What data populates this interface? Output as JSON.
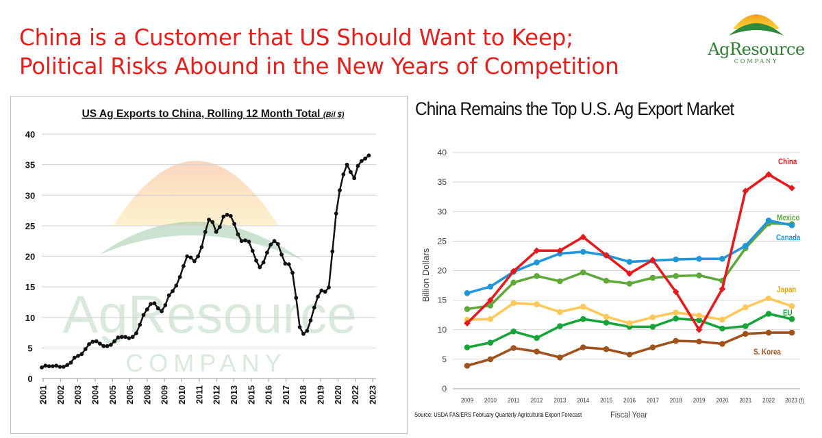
{
  "slide": {
    "title_line1": "China is a Customer that US Should Want to Keep;",
    "title_line2": "Political Risks Abound in the New Years of Competition"
  },
  "logo": {
    "name": "AgResource",
    "sub": "COMPANY"
  },
  "watermark": {
    "name": "AgResource",
    "sub": "COMPANY"
  },
  "colors": {
    "title_red": "#e0211d",
    "brand_green": "#2e7d32"
  },
  "chart_data": [
    {
      "type": "line",
      "title": "US Ag Exports to China, Rolling 12 Month Total",
      "title_unit": "(Bil $)",
      "ylim": [
        0,
        40
      ],
      "yticks": [
        0,
        5,
        10,
        15,
        20,
        25,
        30,
        35,
        40
      ],
      "xlim": [
        2001,
        2024
      ],
      "x_tick_labels": [
        "2001",
        "2002",
        "2003",
        "2004",
        "2005",
        "2006",
        "2008",
        "2009",
        "2010",
        "2011",
        "2012",
        "2013",
        "2015",
        "2016",
        "2017",
        "2018",
        "2019",
        "2020",
        "2022",
        "2023"
      ],
      "grid": true,
      "series": [
        {
          "color": "#111111",
          "points": [
            [
              2001.0,
              1.8
            ],
            [
              2001.25,
              2.1
            ],
            [
              2001.5,
              2.0
            ],
            [
              2001.75,
              2.0
            ],
            [
              2002.0,
              2.1
            ],
            [
              2002.25,
              1.9
            ],
            [
              2002.5,
              1.9
            ],
            [
              2002.75,
              2.2
            ],
            [
              2003.0,
              2.6
            ],
            [
              2003.25,
              3.4
            ],
            [
              2003.5,
              3.7
            ],
            [
              2003.75,
              4.0
            ],
            [
              2004.0,
              4.8
            ],
            [
              2004.25,
              5.6
            ],
            [
              2004.5,
              6.0
            ],
            [
              2004.75,
              6.1
            ],
            [
              2005.0,
              5.7
            ],
            [
              2005.25,
              5.3
            ],
            [
              2005.5,
              5.3
            ],
            [
              2005.75,
              5.5
            ],
            [
              2006.0,
              6.1
            ],
            [
              2006.25,
              6.7
            ],
            [
              2006.5,
              6.8
            ],
            [
              2006.75,
              6.8
            ],
            [
              2007.0,
              6.6
            ],
            [
              2007.25,
              6.8
            ],
            [
              2007.5,
              7.4
            ],
            [
              2007.75,
              8.8
            ],
            [
              2008.0,
              10.4
            ],
            [
              2008.25,
              11.3
            ],
            [
              2008.5,
              12.2
            ],
            [
              2008.75,
              12.3
            ],
            [
              2009.0,
              11.5
            ],
            [
              2009.25,
              11.0
            ],
            [
              2009.5,
              12.0
            ],
            [
              2009.75,
              13.6
            ],
            [
              2010.0,
              14.3
            ],
            [
              2010.25,
              15.2
            ],
            [
              2010.5,
              16.6
            ],
            [
              2010.75,
              18.4
            ],
            [
              2011.0,
              20.0
            ],
            [
              2011.25,
              19.8
            ],
            [
              2011.5,
              19.2
            ],
            [
              2011.75,
              20.0
            ],
            [
              2012.0,
              21.5
            ],
            [
              2012.25,
              24.0
            ],
            [
              2012.5,
              26.0
            ],
            [
              2012.75,
              25.6
            ],
            [
              2013.0,
              24.0
            ],
            [
              2013.25,
              24.8
            ],
            [
              2013.5,
              26.5
            ],
            [
              2013.75,
              26.8
            ],
            [
              2014.0,
              26.6
            ],
            [
              2014.25,
              25.3
            ],
            [
              2014.5,
              23.6
            ],
            [
              2014.75,
              22.5
            ],
            [
              2015.0,
              22.6
            ],
            [
              2015.25,
              22.4
            ],
            [
              2015.5,
              20.9
            ],
            [
              2015.75,
              19.3
            ],
            [
              2016.0,
              18.2
            ],
            [
              2016.25,
              19.0
            ],
            [
              2016.5,
              20.6
            ],
            [
              2016.75,
              21.9
            ],
            [
              2017.0,
              22.5
            ],
            [
              2017.25,
              22.0
            ],
            [
              2017.5,
              20.3
            ],
            [
              2017.75,
              18.8
            ],
            [
              2018.0,
              18.7
            ],
            [
              2018.25,
              17.3
            ],
            [
              2018.5,
              13.2
            ],
            [
              2018.75,
              8.4
            ],
            [
              2019.0,
              7.3
            ],
            [
              2019.25,
              7.8
            ],
            [
              2019.5,
              9.5
            ],
            [
              2019.75,
              11.6
            ],
            [
              2020.0,
              13.4
            ],
            [
              2020.25,
              14.4
            ],
            [
              2020.5,
              14.2
            ],
            [
              2020.75,
              14.9
            ],
            [
              2021.0,
              20.8
            ],
            [
              2021.25,
              27.0
            ],
            [
              2021.5,
              30.8
            ],
            [
              2021.75,
              33.4
            ],
            [
              2022.0,
              35.0
            ],
            [
              2022.25,
              33.8
            ],
            [
              2022.5,
              32.8
            ],
            [
              2022.75,
              34.8
            ],
            [
              2023.0,
              35.6
            ],
            [
              2023.25,
              36.0
            ],
            [
              2023.5,
              36.5
            ]
          ]
        }
      ]
    },
    {
      "type": "line",
      "title": "China Remains the Top U.S. Ag Export Market",
      "xlabel": "Fiscal Year",
      "ylabel": "Billion Dollars",
      "ylim": [
        0,
        40
      ],
      "yticks": [
        0,
        5,
        10,
        15,
        20,
        25,
        30,
        35,
        40
      ],
      "grid": true,
      "categories": [
        "2009",
        "2010",
        "2011",
        "2012",
        "2013",
        "2014",
        "2015",
        "2016",
        "2017",
        "2018",
        "2019",
        "2020",
        "2021",
        "2022",
        "2023 (f)"
      ],
      "series": [
        {
          "name": "China",
          "color": "#e41a1c",
          "values": [
            11.1,
            15.0,
            19.9,
            23.4,
            23.4,
            25.7,
            22.6,
            19.5,
            21.8,
            16.4,
            10.0,
            16.9,
            33.5,
            36.3,
            34.0
          ]
        },
        {
          "name": "Mexico",
          "color": "#5fa83a",
          "values": [
            13.5,
            14.1,
            18.0,
            19.1,
            18.2,
            19.7,
            18.3,
            17.8,
            18.8,
            19.1,
            19.2,
            18.3,
            23.8,
            28.0,
            27.9
          ]
        },
        {
          "name": "Canada",
          "color": "#2196d9",
          "values": [
            16.2,
            17.3,
            19.8,
            21.4,
            22.9,
            23.2,
            22.6,
            21.5,
            21.7,
            21.9,
            22.0,
            22.0,
            24.2,
            28.5,
            27.7
          ]
        },
        {
          "name": "Japan",
          "color": "#ffc85a",
          "values": [
            11.7,
            11.8,
            14.5,
            14.3,
            13.0,
            13.9,
            12.2,
            11.1,
            12.1,
            12.9,
            12.4,
            11.7,
            13.8,
            15.3,
            14.0
          ]
        },
        {
          "name": "EU",
          "color": "#17a43b",
          "values": [
            7.0,
            7.8,
            9.7,
            8.6,
            10.6,
            11.8,
            11.2,
            10.5,
            10.5,
            11.9,
            11.6,
            10.2,
            10.6,
            12.7,
            11.8
          ]
        },
        {
          "name": "S. Korea",
          "color": "#a0521d",
          "values": [
            3.9,
            5.0,
            6.9,
            6.3,
            5.3,
            7.0,
            6.7,
            5.8,
            7.0,
            8.1,
            8.0,
            7.6,
            9.3,
            9.5,
            9.5
          ]
        }
      ],
      "source": "Source: USDA FAS/ERS February Quarterly Agricultural Export Forecast"
    }
  ]
}
